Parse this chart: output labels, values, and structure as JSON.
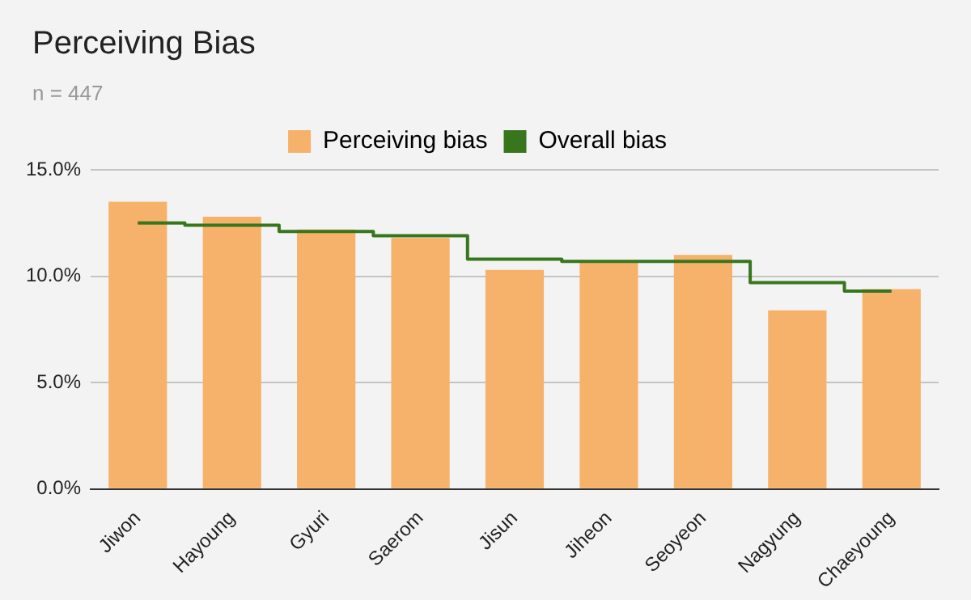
{
  "chart_data": {
    "type": "bar",
    "title": "Perceiving Bias",
    "subtitle": "n = 447",
    "categories": [
      "Jiwon",
      "Hayoung",
      "Gyuri",
      "Saerom",
      "Jisun",
      "Jiheon",
      "Seoyeon",
      "Nagyung",
      "Chaeyoung"
    ],
    "series": [
      {
        "name": "Perceiving bias",
        "color": "#f6b26b",
        "values": [
          13.5,
          12.8,
          12.2,
          11.8,
          10.3,
          10.7,
          11.0,
          8.4,
          9.4
        ]
      },
      {
        "name": "Overall bias",
        "type": "step",
        "color": "#38761d",
        "values": [
          12.5,
          12.4,
          12.1,
          11.9,
          10.8,
          10.7,
          10.7,
          9.7,
          9.3
        ]
      }
    ],
    "ylim": [
      0,
      15
    ],
    "yticks": [
      {
        "value": 0,
        "label": "0.0%"
      },
      {
        "value": 5,
        "label": "5.0%"
      },
      {
        "value": 10,
        "label": "10.0%"
      },
      {
        "value": 15,
        "label": "15.0%"
      }
    ],
    "grid": "y",
    "legend": "top"
  }
}
